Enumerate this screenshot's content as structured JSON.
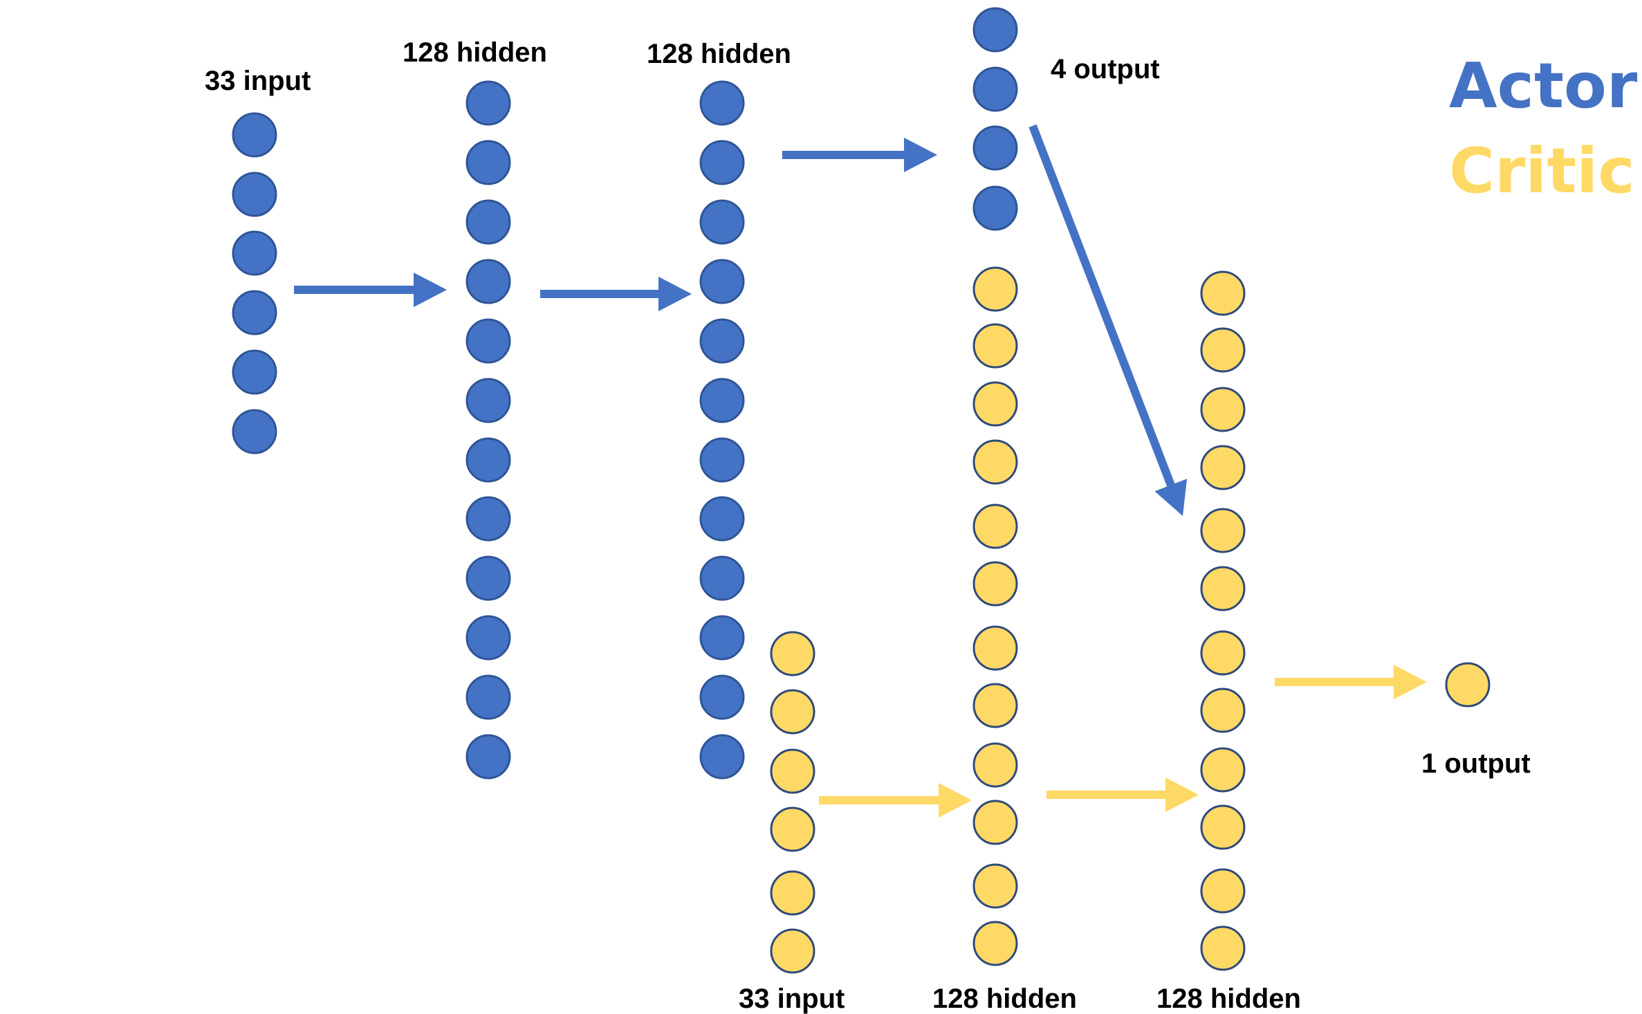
{
  "colors": {
    "actor": "#4472C4",
    "actor_stroke": "#2F5597",
    "critic": "#FFD966",
    "critic_stroke": "#2F4A7A",
    "label": "#000000"
  },
  "legend": {
    "actor": "Actor",
    "critic": "Critic"
  },
  "actor": {
    "layers": [
      {
        "id": "actor-input",
        "label": "33 input",
        "nodes": 6
      },
      {
        "id": "actor-hidden-1",
        "label": "128 hidden",
        "nodes": 12
      },
      {
        "id": "actor-hidden-2",
        "label": "128 hidden",
        "nodes": 12
      },
      {
        "id": "actor-output",
        "label": "4 output",
        "nodes": 4
      }
    ]
  },
  "critic": {
    "layers": [
      {
        "id": "critic-input",
        "label": "33 input",
        "nodes": 6
      },
      {
        "id": "critic-hidden-1",
        "label": "128 hidden",
        "nodes": 12
      },
      {
        "id": "critic-hidden-2",
        "label": "128 hidden",
        "nodes": 12
      },
      {
        "id": "critic-output",
        "label": "1 output",
        "nodes": 1
      }
    ]
  }
}
